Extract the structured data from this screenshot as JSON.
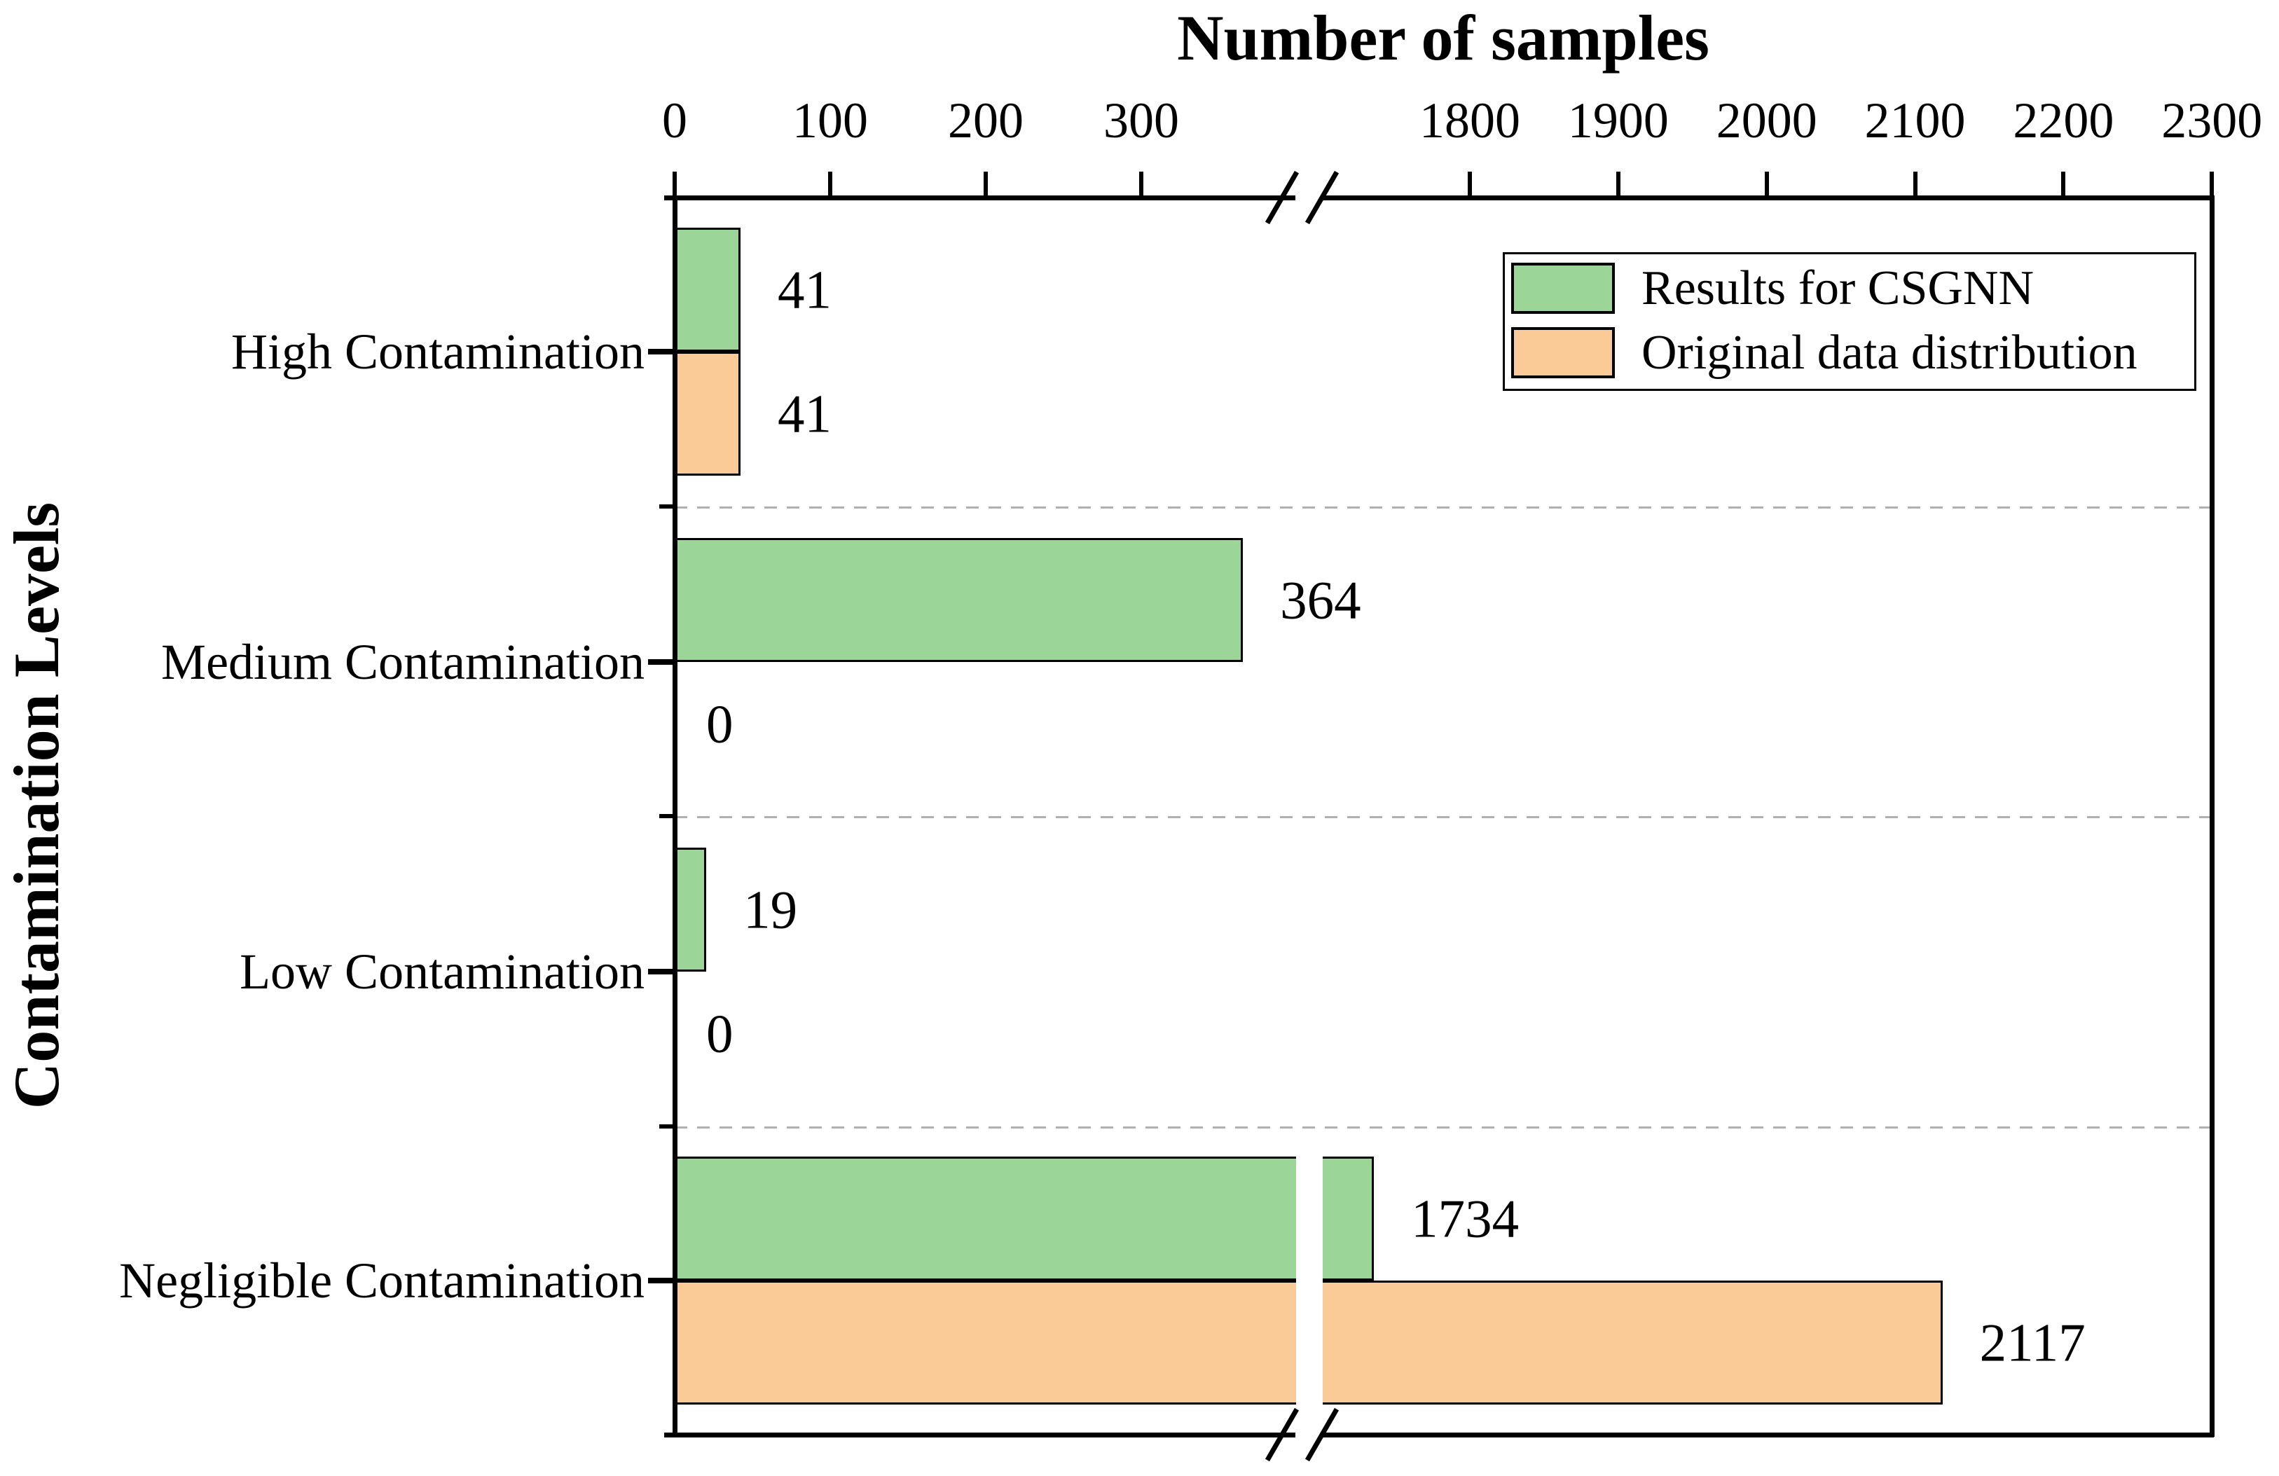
{
  "chart_data": {
    "type": "bar",
    "orientation": "horizontal",
    "title": "Number of samples",
    "xlabel": "Number of samples",
    "ylabel": "Contamination Levels",
    "categories": [
      "High Contamination",
      "Medium Contamination",
      "Low Contamination",
      "Negligible Contamination"
    ],
    "series": [
      {
        "name": "Results for CSGNN",
        "color": "#9CD598",
        "edge_color": "#000000",
        "values": [
          41,
          364,
          19,
          1734
        ]
      },
      {
        "name": "Original data distribution",
        "color": "#FACA97",
        "edge_color": "#000000",
        "values": [
          41,
          0,
          0,
          2117
        ]
      }
    ],
    "value_labels": [
      [
        "41",
        "364",
        "19",
        "1734"
      ],
      [
        "41",
        "0",
        "0",
        "2117"
      ]
    ],
    "x_axis": {
      "broken": true,
      "segments": [
        {
          "range": [
            0,
            400
          ],
          "ticks": [
            0,
            100,
            200,
            300
          ]
        },
        {
          "range": [
            1700,
            2300
          ],
          "ticks": [
            1800,
            1900,
            2000,
            2100,
            2200,
            2300
          ]
        }
      ]
    },
    "grid": {
      "horizontal_category_separators": true,
      "style": "dashed",
      "color": "#B0B0B0"
    },
    "legend_position": "upper right",
    "text_color": "#000000",
    "axis_color": "#000000"
  }
}
